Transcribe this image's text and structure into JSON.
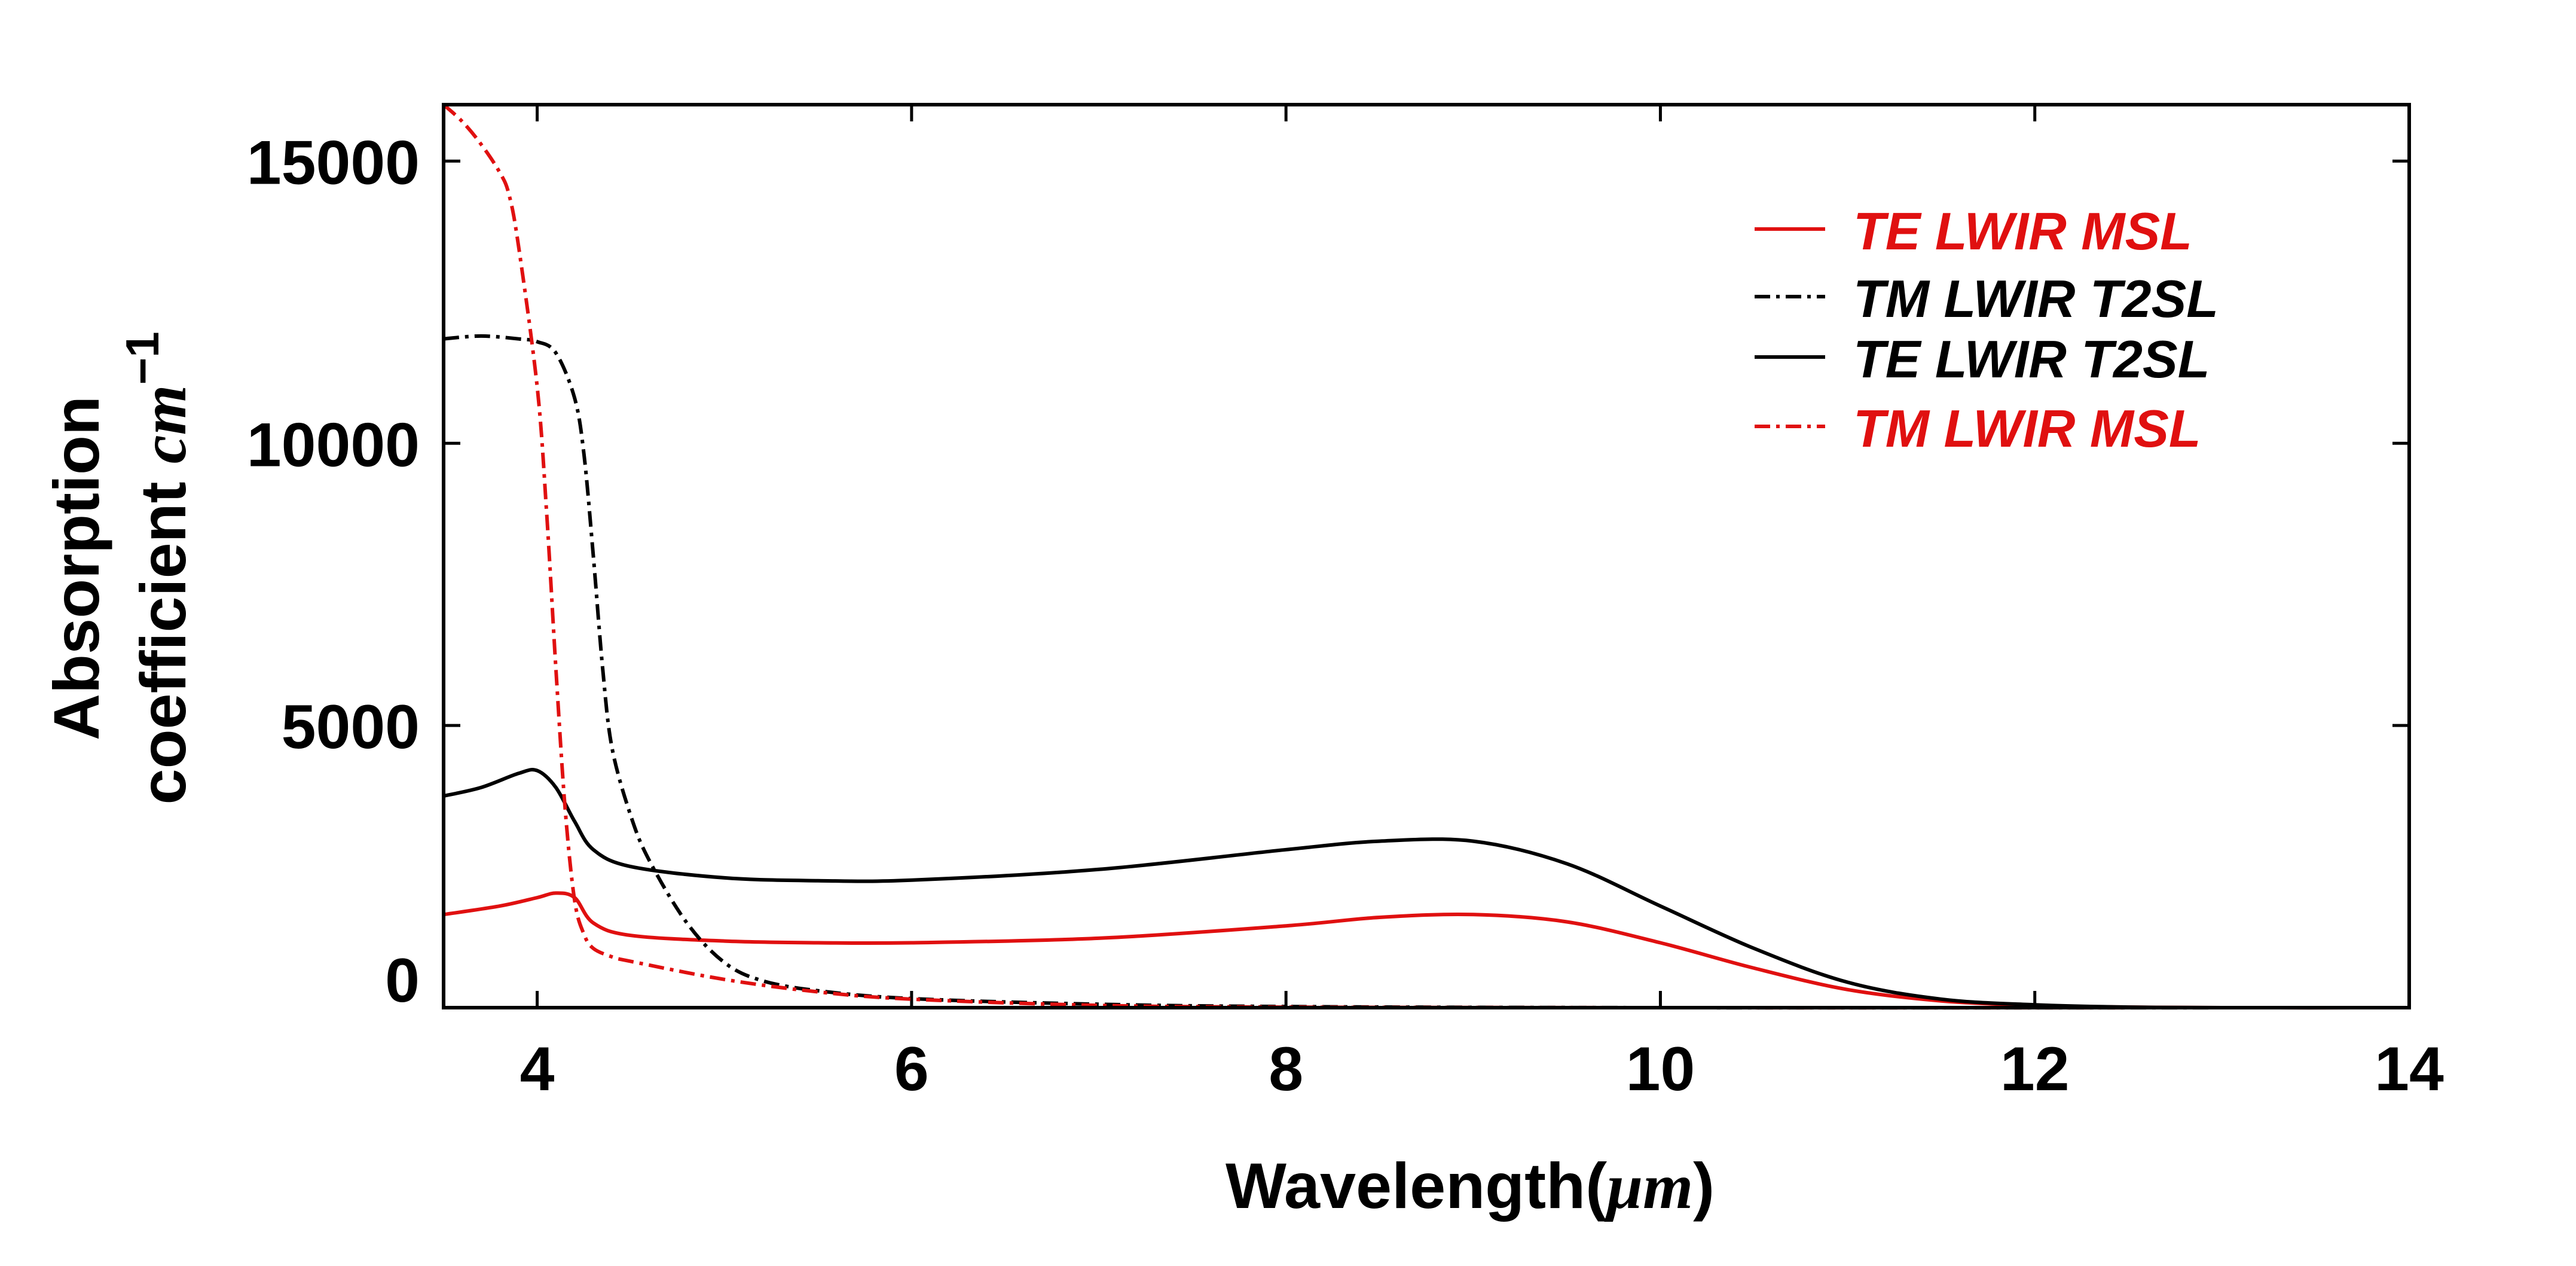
{
  "chart_data": {
    "type": "line",
    "title": "",
    "xlabel": "Wavelength(",
    "xlabel_unit": "μm",
    "xlabel_close": ")",
    "ylabel_line1": "Absorption",
    "ylabel_line2": "coefficient",
    "ylabel_unit": "cm",
    "ylabel_exp": "−1",
    "xlim": [
      3.5,
      14
    ],
    "ylim": [
      0,
      16000
    ],
    "xticks": [
      4,
      6,
      8,
      10,
      12,
      14
    ],
    "xtick_labels": [
      "4",
      "6",
      "8",
      "10",
      "12",
      "14"
    ],
    "yticks": [
      0,
      5000,
      10000,
      15000
    ],
    "ytick_labels": [
      "0",
      "5000",
      "10000",
      "15000"
    ],
    "legend_position": "top-right",
    "colors": {
      "red": "#e01010",
      "black": "#000000"
    },
    "series": [
      {
        "name": "TE LWIR MSL",
        "color": "#e01010",
        "style": "solid",
        "x": [
          3.5,
          3.8,
          4.0,
          4.1,
          4.2,
          4.3,
          4.5,
          5.0,
          5.5,
          6.0,
          7.0,
          8.0,
          8.5,
          9.0,
          9.5,
          10.0,
          10.5,
          11.0,
          11.5,
          12.0,
          12.5,
          13.0,
          14.0
        ],
        "y": [
          1650,
          1800,
          1950,
          2030,
          1950,
          1500,
          1280,
          1180,
          1150,
          1150,
          1230,
          1450,
          1600,
          1650,
          1520,
          1150,
          700,
          320,
          120,
          40,
          10,
          0,
          0
        ]
      },
      {
        "name": "TM LWIR T2SL",
        "color": "#000000",
        "style": "dashdot",
        "x": [
          3.5,
          3.7,
          3.9,
          4.0,
          4.1,
          4.2,
          4.25,
          4.3,
          4.35,
          4.4,
          4.5,
          4.6,
          4.8,
          5.0,
          5.2,
          5.5,
          6.0,
          7.0,
          8.0,
          10.0,
          14.0
        ],
        "y": [
          11850,
          11900,
          11850,
          11800,
          11600,
          10800,
          9800,
          8000,
          6000,
          4600,
          3400,
          2600,
          1500,
          800,
          480,
          300,
          160,
          60,
          20,
          0,
          0
        ]
      },
      {
        "name": "TE LWIR T2SL",
        "color": "#000000",
        "style": "solid",
        "x": [
          3.5,
          3.7,
          3.9,
          4.0,
          4.1,
          4.2,
          4.3,
          4.5,
          5.0,
          5.5,
          6.0,
          7.0,
          8.0,
          8.5,
          9.0,
          9.5,
          10.0,
          10.5,
          11.0,
          11.5,
          12.0,
          12.5,
          13.0,
          14.0
        ],
        "y": [
          3750,
          3900,
          4150,
          4200,
          3900,
          3300,
          2800,
          2500,
          2300,
          2250,
          2260,
          2450,
          2800,
          2950,
          2950,
          2550,
          1800,
          1050,
          450,
          150,
          50,
          10,
          0,
          0
        ]
      },
      {
        "name": "TM LWIR MSL",
        "color": "#e01010",
        "style": "dashdot",
        "x": [
          3.5,
          3.6,
          3.7,
          3.8,
          3.85,
          3.9,
          4.0,
          4.05,
          4.1,
          4.15,
          4.2,
          4.25,
          4.3,
          4.4,
          4.5,
          5.0,
          5.5,
          6.0,
          7.0,
          8.0,
          10.0,
          14.0
        ],
        "y": [
          16000,
          15700,
          15300,
          14800,
          14400,
          13500,
          11000,
          8800,
          6000,
          3500,
          1900,
          1300,
          1050,
          900,
          820,
          500,
          280,
          150,
          40,
          10,
          0,
          0
        ]
      }
    ]
  }
}
